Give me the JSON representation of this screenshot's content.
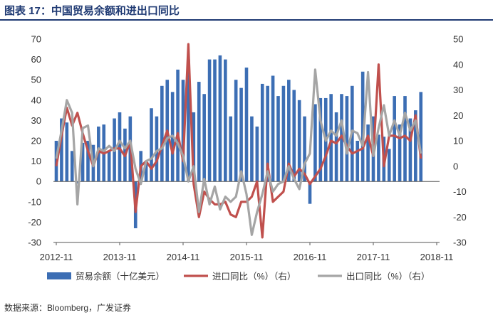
{
  "title": "图表 17：中国贸易余额和进出口同比",
  "source": "数据来源：Bloomberg，广发证券",
  "colors": {
    "bar": "#3c6eb4",
    "import": "#c0504d",
    "export": "#a5a5a5",
    "title": "#1f3a73"
  },
  "chart_data": {
    "type": "bar",
    "x_ticks": [
      "2012-11",
      "2013-11",
      "2014-11",
      "2015-11",
      "2016-11",
      "2017-11",
      "2018-11"
    ],
    "left_axis": {
      "min": -30,
      "max": 70,
      "step": 10
    },
    "right_axis": {
      "min": -30,
      "max": 50,
      "step": 10
    },
    "legend_position": "bottom",
    "grid": false,
    "series": [
      {
        "name": "贸易余额（十亿美元）",
        "kind": "bar",
        "axis": "left",
        "values": [
          20,
          31,
          29,
          15,
          -1,
          19,
          20,
          18,
          27,
          28,
          15,
          31,
          34,
          26,
          32,
          -23,
          15,
          9,
          36,
          32,
          47,
          50,
          44,
          55,
          50,
          60,
          34,
          49,
          43,
          60,
          60,
          62,
          60,
          32,
          50,
          46,
          56,
          32,
          27,
          48,
          47,
          52,
          42,
          47,
          50,
          45,
          40,
          32,
          -11,
          38,
          41,
          41,
          43,
          34,
          43,
          42,
          47,
          20,
          54,
          28,
          32,
          23,
          22,
          16,
          42,
          28,
          42,
          31,
          35,
          44
        ]
      },
      {
        "name": "进口同比（%）（右）",
        "kind": "line",
        "axis": "right",
        "values": [
          0,
          12,
          23,
          16,
          21,
          13,
          6,
          0,
          6,
          5,
          6,
          7,
          7,
          4,
          10,
          -18,
          0,
          2,
          -1,
          2,
          8,
          14,
          5,
          13,
          2,
          48,
          -7,
          -20,
          -10,
          -13,
          -15,
          -15,
          -14,
          -19,
          -20,
          -14,
          -14,
          -12,
          -6,
          -28,
          1,
          -14,
          -12,
          -10,
          1,
          -4,
          -1,
          -3,
          -7,
          -4,
          -1,
          4,
          10,
          9,
          12,
          8,
          5,
          6,
          7,
          12,
          4,
          40,
          0,
          12,
          12,
          11,
          12,
          10,
          20,
          3
        ]
      },
      {
        "name": "出口同比（%）（右）",
        "kind": "line",
        "axis": "right",
        "values": [
          3,
          14,
          26,
          21,
          -15,
          15,
          16,
          0,
          7,
          6,
          8,
          6,
          10,
          7,
          10,
          -1,
          -7,
          2,
          3,
          6,
          7,
          11,
          12,
          9,
          4,
          -6,
          0,
          -18,
          -5,
          -15,
          -8,
          -17,
          -12,
          -14,
          -12,
          -2,
          -11,
          -27,
          -18,
          -11,
          -2,
          -10,
          -7,
          -6,
          0,
          -5,
          -9,
          1,
          5,
          38,
          18,
          10,
          14,
          12,
          18,
          5,
          14,
          13,
          8,
          37,
          4,
          15,
          24,
          12,
          18,
          12,
          21,
          14,
          18,
          5
        ]
      }
    ]
  }
}
